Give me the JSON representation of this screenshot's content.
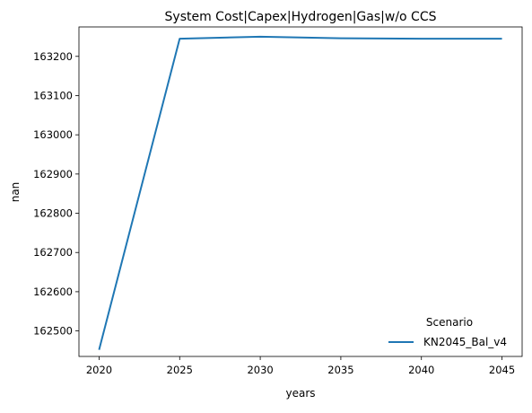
{
  "chart_data": {
    "type": "line",
    "title": "System Cost|Capex|Hydrogen|Gas|w/o CCS",
    "xlabel": "years",
    "ylabel": "nan",
    "x": [
      2020,
      2025,
      2030,
      2035,
      2040,
      2045
    ],
    "x_ticks": [
      "2020",
      "2025",
      "2030",
      "2035",
      "2040",
      "2045"
    ],
    "y_ticks": [
      "162500",
      "162600",
      "162700",
      "162800",
      "162900",
      "163000",
      "163100",
      "163200"
    ],
    "xlim": [
      2018.75,
      2046.25
    ],
    "ylim": [
      162435,
      163275
    ],
    "grid": false,
    "legend": {
      "title": "Scenario",
      "placement": "lower-right"
    },
    "series": [
      {
        "name": "KN2045_Bal_v4",
        "color": "#1f77b4",
        "values": [
          162452,
          163245,
          163250,
          163246,
          163245,
          163245
        ]
      }
    ]
  }
}
